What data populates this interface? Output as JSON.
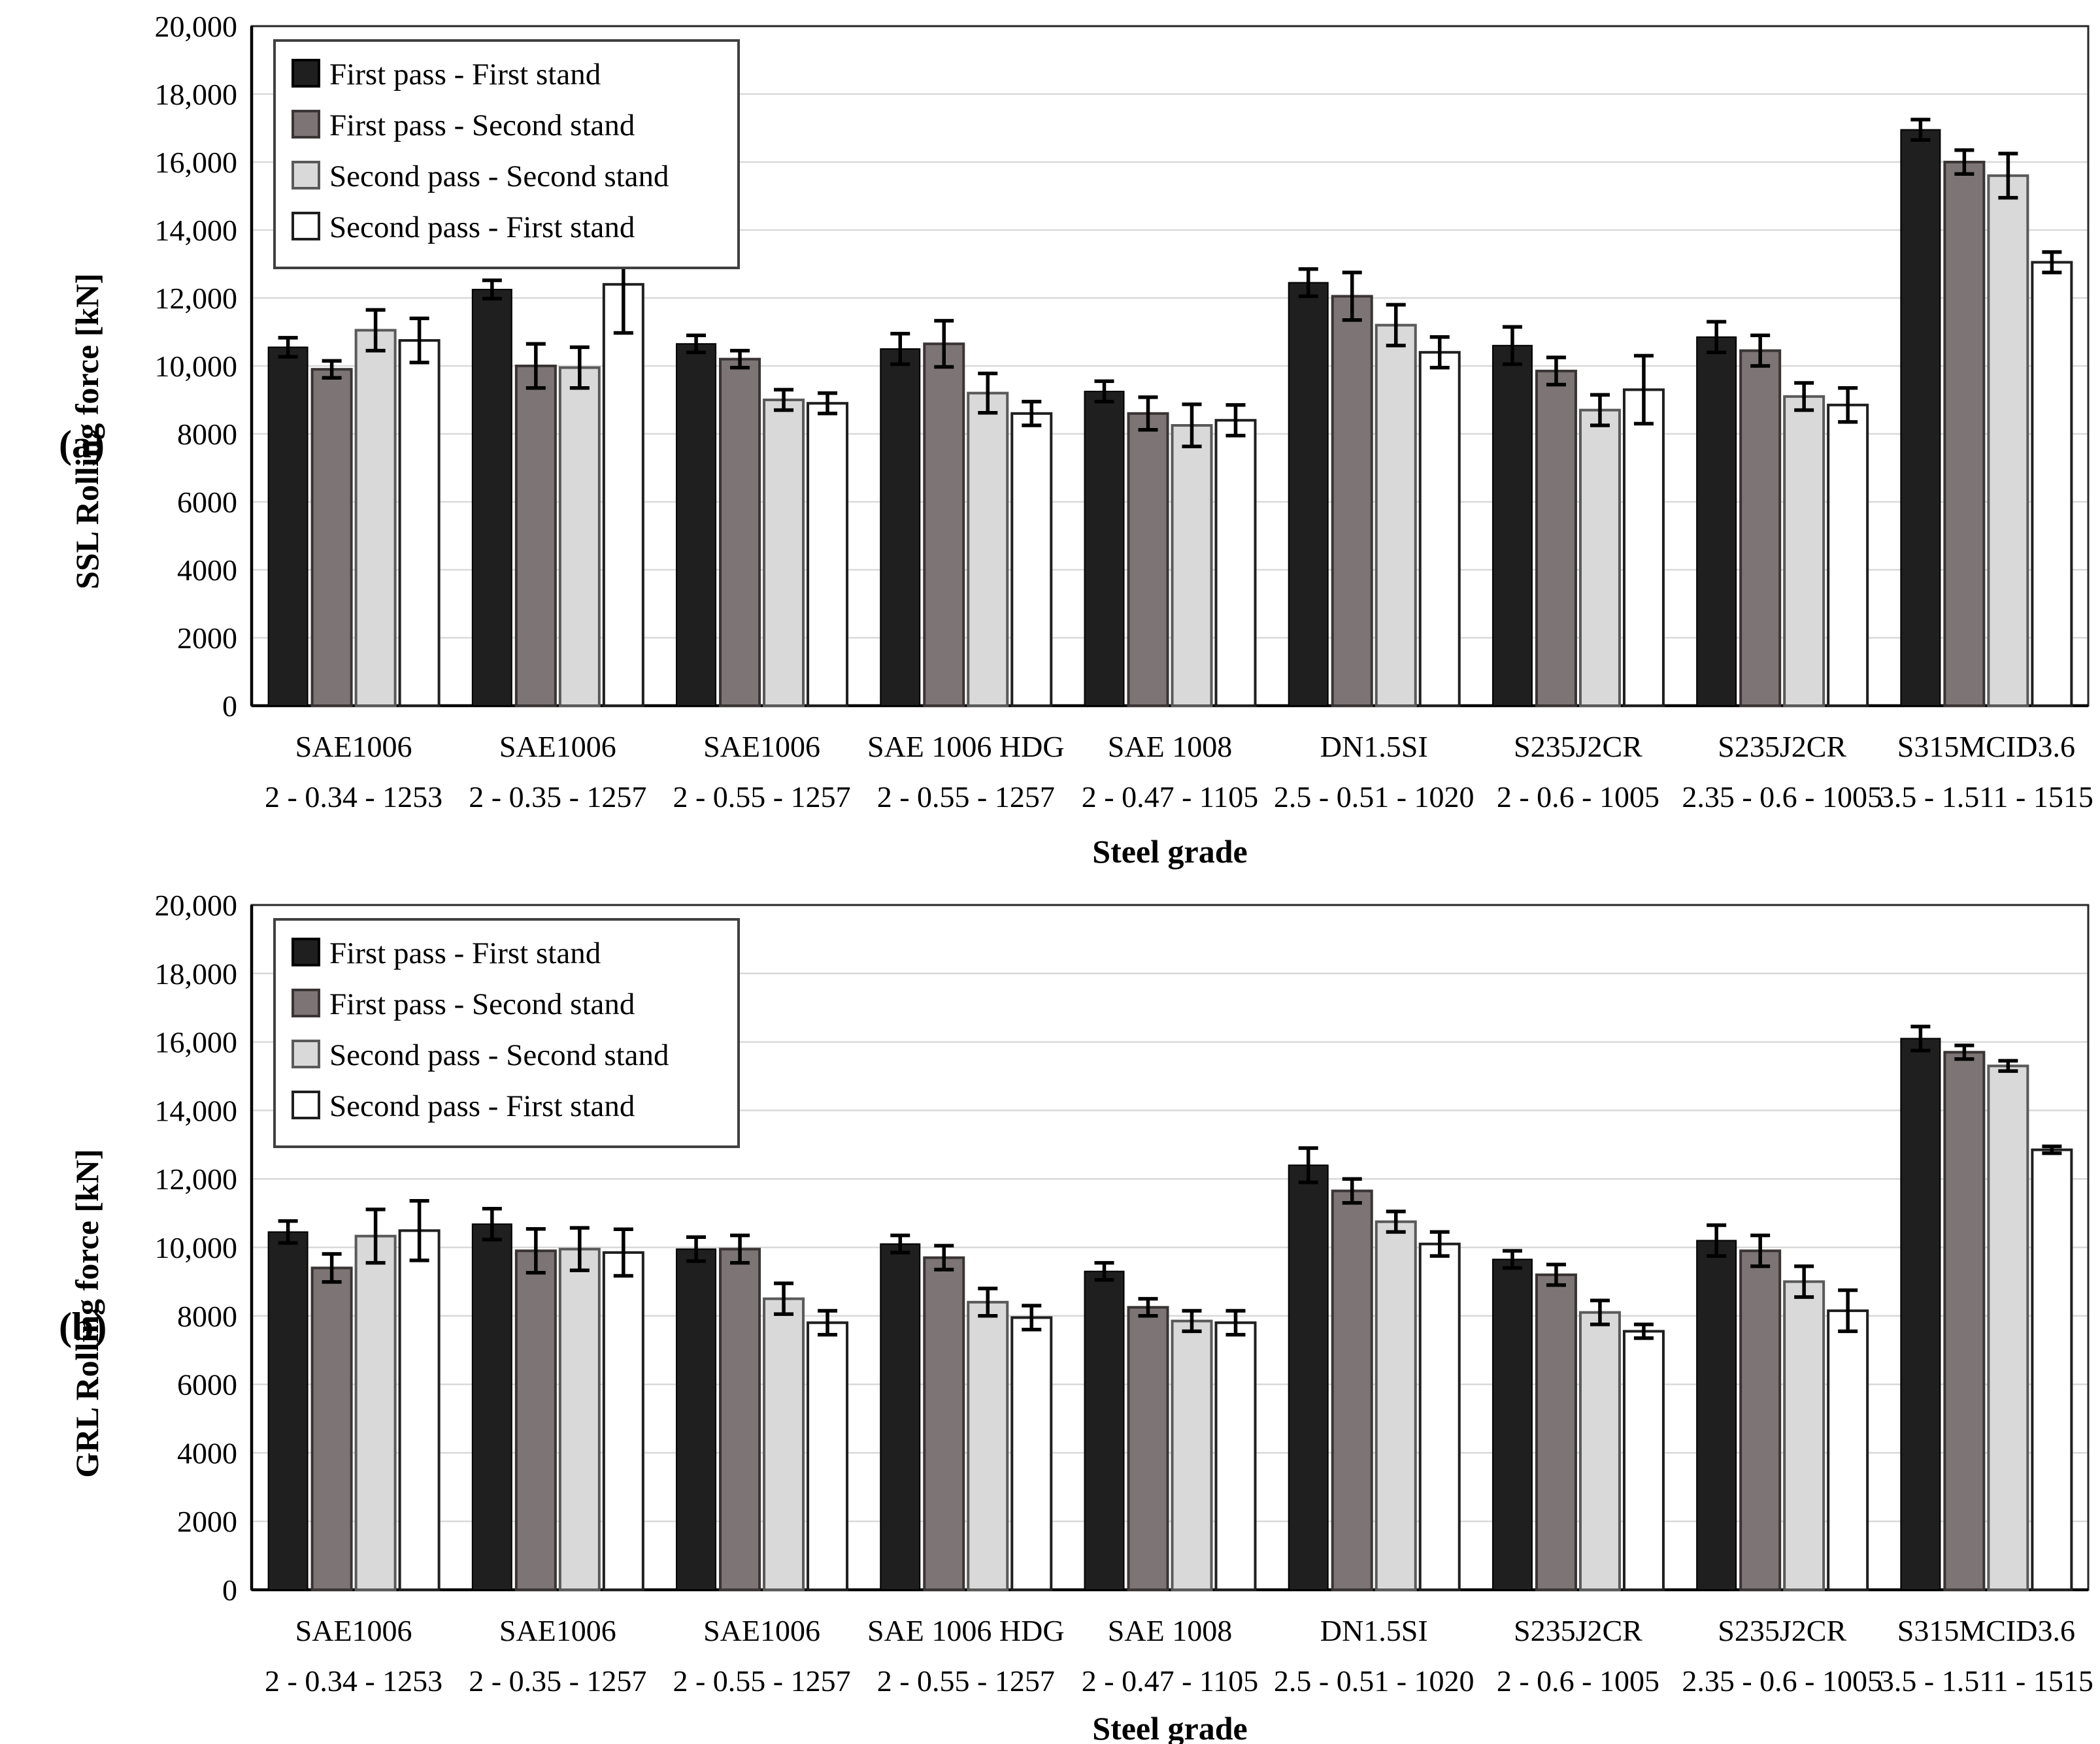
{
  "figure": {
    "panel_count": 2,
    "colors": {
      "series_fills": [
        "#1f1f1f",
        "#7d7575",
        "#d9d9d9",
        "#ffffff"
      ],
      "series_strokes": [
        "#000000",
        "#3a3434",
        "#595959",
        "#1f1f1f"
      ],
      "gridline": "#d9d9d9",
      "plot_border": "#262626",
      "axis": "#000000",
      "legend_border": "#404040"
    }
  },
  "chart_data": [
    {
      "type": "bar",
      "panel_label": "(a)",
      "ylabel": "SSL Rolling force [kN]",
      "xlabel": "Steel grade",
      "ylim": [
        0,
        20000
      ],
      "ytick_step": 2000,
      "grid": true,
      "legend_position": "top-left",
      "ytick_labels": [
        "0",
        "2000",
        "4000",
        "6000",
        "8000",
        "10,000",
        "12,000",
        "14,000",
        "16,000",
        "18,000",
        "20,000"
      ],
      "categories": [
        {
          "line1": "SAE1006",
          "line2": "2 - 0.34 - 1253"
        },
        {
          "line1": "SAE1006",
          "line2": "2 - 0.35 - 1257"
        },
        {
          "line1": "SAE1006",
          "line2": "2 - 0.55 - 1257"
        },
        {
          "line1": "SAE 1006 HDG",
          "line2": "2 - 0.55 - 1257"
        },
        {
          "line1": "SAE 1008",
          "line2": "2 - 0.47 - 1105"
        },
        {
          "line1": "DN1.5SI",
          "line2": "2.5 - 0.51 - 1020"
        },
        {
          "line1": "S235J2CR",
          "line2": "2 - 0.6 - 1005"
        },
        {
          "line1": "S235J2CR",
          "line2": "2.35 - 0.6 - 1005"
        },
        {
          "line1": "S315MCID3.6",
          "line2": "3.5 - 1.511 - 1515"
        }
      ],
      "series": [
        {
          "name": "First pass - First stand",
          "values": [
            10550,
            12250,
            10650,
            10500,
            9250,
            12450,
            10600,
            10850,
            16950
          ],
          "errors": [
            280,
            270,
            250,
            450,
            300,
            400,
            550,
            450,
            300
          ]
        },
        {
          "name": "First pass - Second stand",
          "values": [
            9900,
            10000,
            10200,
            10650,
            8600,
            12050,
            9850,
            10450,
            16000
          ],
          "errors": [
            250,
            650,
            250,
            680,
            480,
            700,
            400,
            450,
            350
          ]
        },
        {
          "name": "Second pass - Second stand",
          "values": [
            11050,
            9950,
            9000,
            9200,
            8250,
            11200,
            8700,
            9100,
            15600
          ],
          "errors": [
            600,
            600,
            300,
            580,
            620,
            600,
            450,
            400,
            650
          ]
        },
        {
          "name": "Second pass - First stand",
          "values": [
            10750,
            12400,
            8900,
            8600,
            8400,
            10400,
            9300,
            8850,
            13050
          ],
          "errors": [
            650,
            1430,
            300,
            350,
            450,
            450,
            1000,
            500,
            300
          ]
        }
      ]
    },
    {
      "type": "bar",
      "panel_label": "(b)",
      "ylabel": "GRL Rolling force [kN]",
      "xlabel": "Steel grade",
      "ylim": [
        0,
        20000
      ],
      "ytick_step": 2000,
      "grid": true,
      "legend_position": "top-left",
      "ytick_labels": [
        "0",
        "2000",
        "4000",
        "6000",
        "8000",
        "10,000",
        "12,000",
        "14,000",
        "16,000",
        "18,000",
        "20,000"
      ],
      "categories": [
        {
          "line1": "SAE1006",
          "line2": "2 - 0.34 - 1253"
        },
        {
          "line1": "SAE1006",
          "line2": "2 - 0.35 - 1257"
        },
        {
          "line1": "SAE1006",
          "line2": "2 - 0.55 - 1257"
        },
        {
          "line1": "SAE 1006 HDG",
          "line2": "2 - 0.55 - 1257"
        },
        {
          "line1": "SAE 1008",
          "line2": "2 - 0.47 - 1105"
        },
        {
          "line1": "DN1.5SI",
          "line2": "2.5 - 0.51 - 1020"
        },
        {
          "line1": "S235J2CR",
          "line2": "2 - 0.6 - 1005"
        },
        {
          "line1": "S235J2CR",
          "line2": "2.35 - 0.6 - 1005"
        },
        {
          "line1": "S315MCID3.6",
          "line2": "3.5 - 1.511 - 1515"
        }
      ],
      "series": [
        {
          "name": "First pass - First stand",
          "values": [
            10450,
            10680,
            9950,
            10100,
            9300,
            12400,
            9650,
            10200,
            16100
          ],
          "errors": [
            320,
            450,
            350,
            250,
            250,
            500,
            250,
            450,
            350
          ]
        },
        {
          "name": "First pass - Second stand",
          "values": [
            9400,
            9900,
            9950,
            9700,
            8250,
            11650,
            9200,
            9900,
            15700
          ],
          "errors": [
            410,
            640,
            400,
            350,
            250,
            350,
            300,
            450,
            200
          ]
        },
        {
          "name": "Second pass - Second stand",
          "values": [
            10330,
            9950,
            8500,
            8400,
            7850,
            10750,
            8100,
            9000,
            15300
          ],
          "errors": [
            780,
            620,
            450,
            400,
            300,
            300,
            350,
            450,
            150
          ]
        },
        {
          "name": "Second pass - First stand",
          "values": [
            10490,
            9850,
            7800,
            7950,
            7800,
            10100,
            7550,
            8150,
            12850
          ],
          "errors": [
            870,
            680,
            350,
            350,
            350,
            350,
            200,
            600,
            100
          ]
        }
      ]
    }
  ]
}
